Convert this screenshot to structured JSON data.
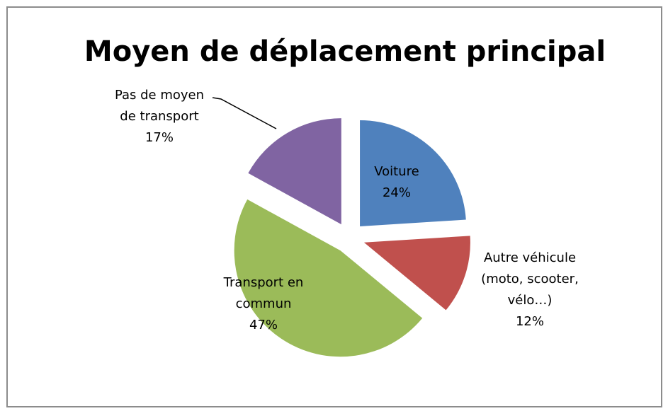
{
  "chart_data": {
    "type": "pie",
    "title": "Moyen de déplacement principal",
    "categories": [
      "Voiture",
      "Autre véhicule (moto, scooter, vélo…)",
      "Transport en commun",
      "Pas de moyen de transport"
    ],
    "values": [
      24,
      12,
      47,
      17
    ],
    "value_labels": [
      "24%",
      "12%",
      "47%",
      "17%"
    ],
    "colors": [
      "#4f81bd",
      "#c0504d",
      "#9bbb59",
      "#8064a2"
    ]
  }
}
